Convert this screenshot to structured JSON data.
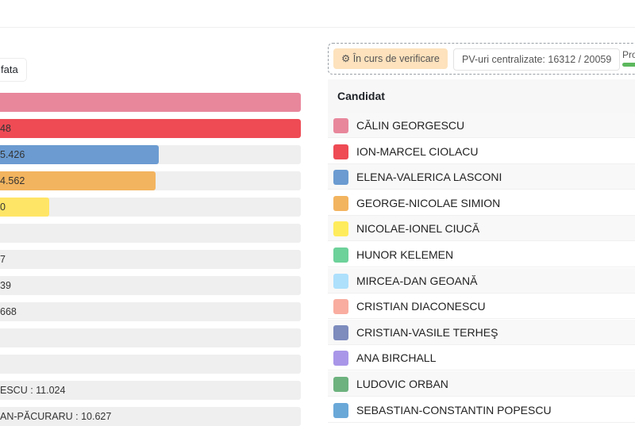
{
  "filter": {
    "label": "fata"
  },
  "bars": [
    {
      "label": "",
      "fill": 1.0,
      "color": "#e8879c"
    },
    {
      "label": "48",
      "fill": 1.0,
      "color": "#ee4b55"
    },
    {
      "label": "5.426",
      "fill": 0.528,
      "color": "#6b9bd1"
    },
    {
      "label": "4.562",
      "fill": 0.517,
      "color": "#f3b45f"
    },
    {
      "label": "0",
      "fill": 0.164,
      "color": "#ffe566"
    },
    {
      "label": "",
      "fill": 0,
      "color": "#6dd19a"
    },
    {
      "label": "7",
      "fill": 0,
      "color": "#aee0fc"
    },
    {
      "label": "39",
      "fill": 0,
      "color": "#f9ada0"
    },
    {
      "label": "668",
      "fill": 0,
      "color": "#7d8bbd"
    },
    {
      "label": "",
      "fill": 0,
      "color": "#a996e8"
    },
    {
      "label": "",
      "fill": 0,
      "color": "#6db27f"
    },
    {
      "label": "ESCU : 11.024",
      "fill": 0,
      "color": "#6aa8d8"
    },
    {
      "label": "AN-PĂCURARU : 10.627",
      "fill": 0,
      "color": "#cccccc"
    }
  ],
  "status": {
    "icon": "gear-icon",
    "label": "În curs de verificare"
  },
  "pv": {
    "label": "PV-uri centralizate: 16312 / 20059"
  },
  "progress": {
    "label": "Pro",
    "value": 0.813
  },
  "table": {
    "header": "Candidat",
    "rows": [
      {
        "name": "CĂLIN GEORGESCU",
        "color": "#e8879c"
      },
      {
        "name": "ION-MARCEL CIOLACU",
        "color": "#ee4b55"
      },
      {
        "name": "ELENA-VALERICA LASCONI",
        "color": "#6b9bd1"
      },
      {
        "name": "GEORGE-NICOLAE SIMION",
        "color": "#f3b45f"
      },
      {
        "name": "NICOLAE-IONEL CIUCĂ",
        "color": "#ffec5c"
      },
      {
        "name": "HUNOR KELEMEN",
        "color": "#6dd19a"
      },
      {
        "name": "MIRCEA-DAN GEOANĂ",
        "color": "#aee0fc"
      },
      {
        "name": "CRISTIAN DIACONESCU",
        "color": "#f9ada0"
      },
      {
        "name": "CRISTIAN-VASILE TERHEŞ",
        "color": "#7d8bbd"
      },
      {
        "name": "ANA BIRCHALL",
        "color": "#a996e8"
      },
      {
        "name": "LUDOVIC ORBAN",
        "color": "#6db27f"
      },
      {
        "name": "SEBASTIAN-CONSTANTIN POPESCU",
        "color": "#6aa8d8"
      }
    ]
  }
}
